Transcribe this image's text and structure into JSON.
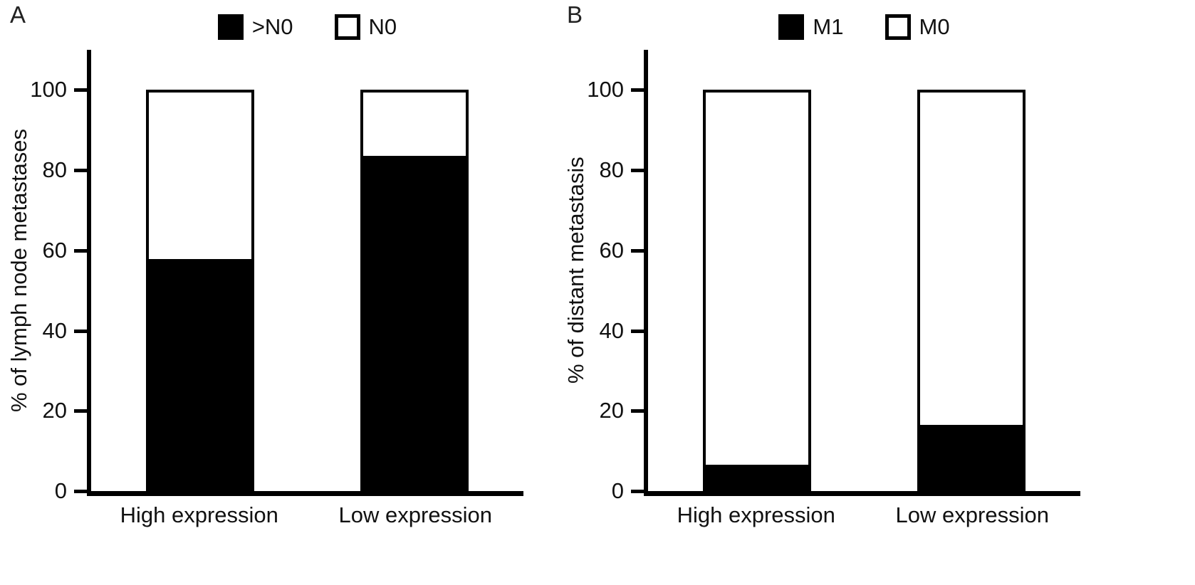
{
  "figure": {
    "background": "#ffffff",
    "bar_fill_color": "#000000",
    "bar_open_color": "#ffffff",
    "axis_color": "#000000"
  },
  "chart_data": [
    {
      "type": "bar",
      "stacked": true,
      "panel_label": "A",
      "title": "",
      "xlabel": "",
      "ylabel": "% of lymph node metastases",
      "categories": [
        "High expression",
        "Low expression"
      ],
      "series": [
        {
          "name": ">N0",
          "color": "#000000",
          "values": [
            58,
            84
          ]
        },
        {
          "name": "N0",
          "color": "#ffffff",
          "values": [
            42,
            16
          ]
        }
      ],
      "ylim": [
        0,
        110
      ],
      "yticks": [
        0,
        20,
        40,
        60,
        80,
        100
      ],
      "grid": false,
      "legend_position": "top"
    },
    {
      "type": "bar",
      "stacked": true,
      "panel_label": "B",
      "title": "",
      "xlabel": "",
      "ylabel": "% of distant metastasis",
      "categories": [
        "High expression",
        "Low expression"
      ],
      "series": [
        {
          "name": "M1",
          "color": "#000000",
          "values": [
            6,
            16
          ]
        },
        {
          "name": "M0",
          "color": "#ffffff",
          "values": [
            94,
            84
          ]
        }
      ],
      "ylim": [
        0,
        110
      ],
      "yticks": [
        0,
        20,
        40,
        60,
        80,
        100
      ],
      "grid": false,
      "legend_position": "top"
    }
  ]
}
